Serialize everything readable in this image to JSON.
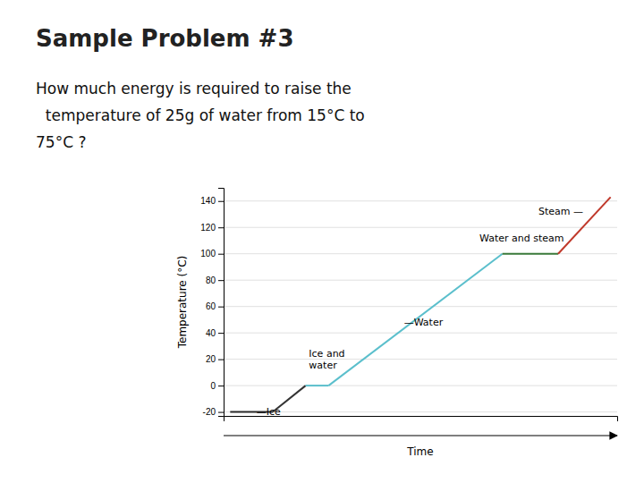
{
  "chart_data": {
    "type": "line",
    "title": "Sample Problem #3",
    "subtitle": [
      "How much energy is required to raise the",
      "  temperature of 25g of water from 15°C to",
      "75°C ?"
    ],
    "ylabel": "Temperature (°C)",
    "xlabel": "Time",
    "xlim": [
      0,
      12
    ],
    "ylim": [
      -23,
      150
    ],
    "yticks": [
      -20,
      0,
      20,
      40,
      60,
      80,
      100,
      120,
      140
    ],
    "tick_labels": "y",
    "grid": true,
    "series": [
      {
        "x": [
          0.2,
          1.5
        ],
        "values": [
          -20,
          -20
        ],
        "color": "#2a2a2a"
      },
      {
        "x": [
          1.5,
          2.5
        ],
        "values": [
          -20,
          0
        ],
        "color": "#333333"
      },
      {
        "x": [
          2.5,
          3.2
        ],
        "values": [
          0,
          0
        ],
        "color": "#5bbfcc"
      },
      {
        "x": [
          3.2,
          8.5
        ],
        "values": [
          0,
          100
        ],
        "color": "#5bbfcc"
      },
      {
        "x": [
          8.5,
          10.2
        ],
        "values": [
          100,
          100
        ],
        "color": "#3a7a3a"
      },
      {
        "x": [
          10.2,
          11.8
        ],
        "values": [
          100,
          143
        ],
        "color": "#c0392b"
      }
    ],
    "annotations": [
      {
        "text": "—Ice",
        "x": 1.0,
        "y": -20
      },
      {
        "text": "Ice and\nwater",
        "x": 2.6,
        "y": 20
      },
      {
        "text": "—Water",
        "x": 5.5,
        "y": 48
      },
      {
        "text": "Water and steam",
        "x": 7.8,
        "y": 112
      },
      {
        "text": "Steam —",
        "x": 9.6,
        "y": 132
      }
    ]
  }
}
